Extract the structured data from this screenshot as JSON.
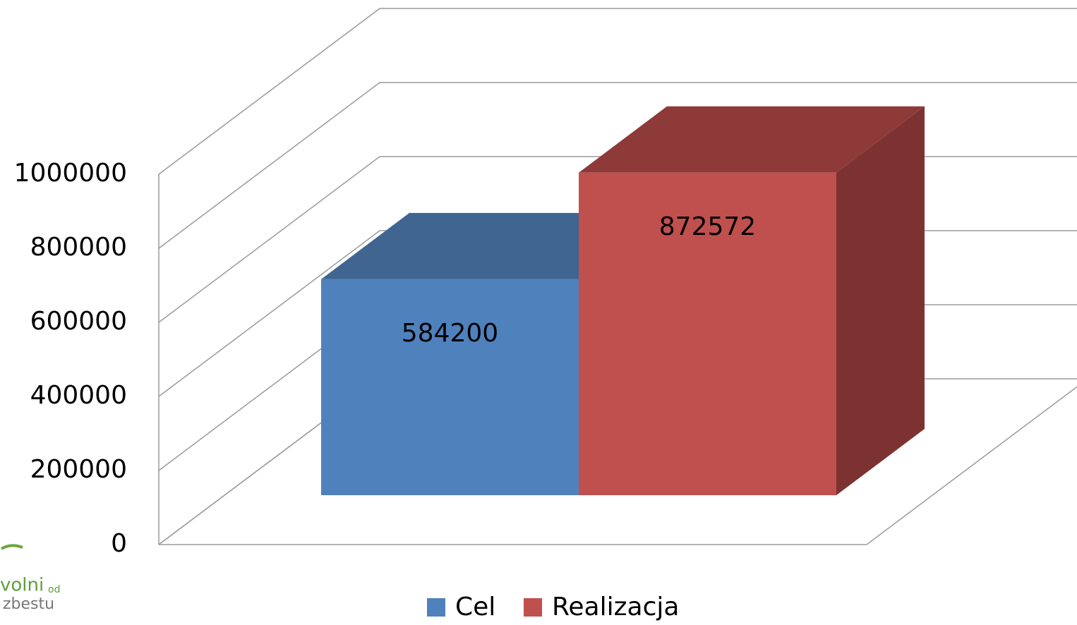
{
  "chart_data": {
    "type": "bar3d",
    "categories": [
      null
    ],
    "series": [
      {
        "name": "Cel",
        "color": "#4f81bd",
        "top_color": "#3f6590",
        "side_color": "#38587f",
        "values": [
          584200
        ]
      },
      {
        "name": "Realizacja",
        "color": "#c0504d",
        "top_color": "#8e3a38",
        "side_color": "#7c3230",
        "values": [
          872572
        ]
      }
    ],
    "ylim": [
      0,
      1000000
    ],
    "yticks": [
      0,
      200000,
      400000,
      600000,
      800000,
      1000000
    ],
    "grid": true,
    "legend": "bottom"
  },
  "logo": {
    "word1": "volni",
    "word2": "od",
    "word3": "zbestu"
  }
}
